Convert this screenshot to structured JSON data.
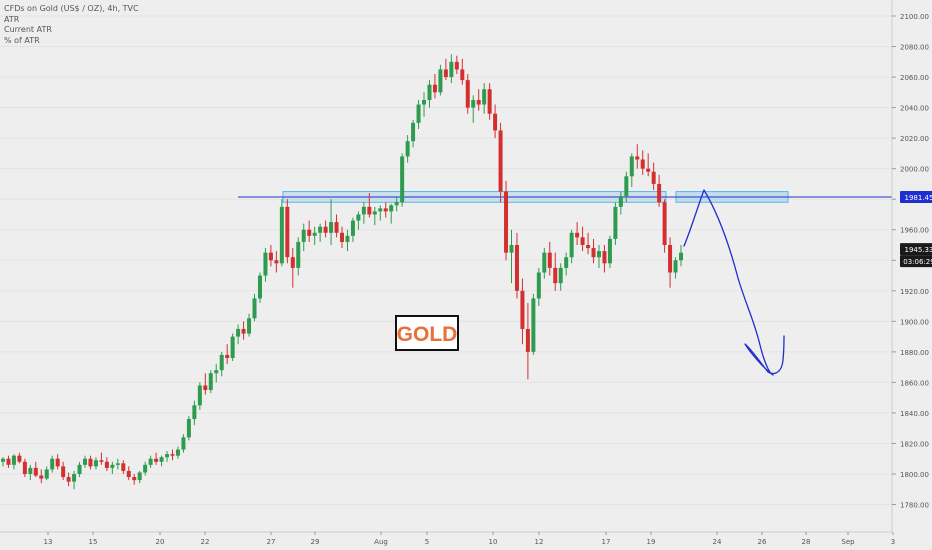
{
  "legend": {
    "title": "CFDs on Gold (US$ / OZ), 4h, TVC",
    "line1": "ATR",
    "line2": "Current ATR",
    "line3": "% of ATR"
  },
  "annotation": {
    "label": "GOLD",
    "color": "#e8703a"
  },
  "colors": {
    "up": "#2e9b4f",
    "down": "#d32f2f",
    "bg": "#eeeeee",
    "zone": "#5ab4e8",
    "drawing": "#1e2fcf"
  },
  "chart_data": {
    "type": "candlestick",
    "symbol": "CFDs on Gold (US$ / OZ)",
    "timeframe": "4h",
    "source": "TVC",
    "y_axis": {
      "ticks": [
        1780,
        1800,
        1820,
        1840,
        1860,
        1880,
        1900,
        1920,
        1940,
        1960,
        1980,
        2000,
        2020,
        2040,
        2060,
        2080,
        2100
      ],
      "range": [
        1768,
        2110
      ]
    },
    "x_axis": {
      "ticks": [
        "13",
        "15",
        "20",
        "22",
        "27",
        "29",
        "Aug",
        "5",
        "10",
        "12",
        "17",
        "19",
        "24",
        "26",
        "28",
        "Sep",
        "3"
      ]
    },
    "price_labels": {
      "level": "1981.45",
      "last": "1945.33",
      "countdown": "03:06:29"
    },
    "horizontal_line": 1981.45,
    "zone": [
      1978,
      1985
    ],
    "candles": [
      [
        1808,
        1811,
        1805,
        1810
      ],
      [
        1810,
        1812,
        1804,
        1806
      ],
      [
        1806,
        1813,
        1803,
        1812
      ],
      [
        1812,
        1814,
        1807,
        1808
      ],
      [
        1808,
        1810,
        1798,
        1800
      ],
      [
        1800,
        1806,
        1796,
        1804
      ],
      [
        1804,
        1808,
        1798,
        1799
      ],
      [
        1799,
        1803,
        1794,
        1797
      ],
      [
        1797,
        1805,
        1796,
        1803
      ],
      [
        1803,
        1812,
        1801,
        1810
      ],
      [
        1810,
        1813,
        1803,
        1805
      ],
      [
        1805,
        1808,
        1796,
        1798
      ],
      [
        1798,
        1801,
        1792,
        1795
      ],
      [
        1795,
        1802,
        1790,
        1800
      ],
      [
        1800,
        1808,
        1798,
        1806
      ],
      [
        1806,
        1812,
        1804,
        1810
      ],
      [
        1810,
        1812,
        1803,
        1805
      ],
      [
        1805,
        1811,
        1803,
        1809
      ],
      [
        1809,
        1814,
        1806,
        1808
      ],
      [
        1808,
        1811,
        1802,
        1804
      ],
      [
        1804,
        1808,
        1800,
        1806
      ],
      [
        1806,
        1810,
        1803,
        1807
      ],
      [
        1807,
        1809,
        1800,
        1802
      ],
      [
        1802,
        1805,
        1796,
        1798
      ],
      [
        1798,
        1800,
        1793,
        1796
      ],
      [
        1796,
        1802,
        1794,
        1801
      ],
      [
        1801,
        1808,
        1799,
        1806
      ],
      [
        1806,
        1812,
        1804,
        1810
      ],
      [
        1810,
        1814,
        1806,
        1808
      ],
      [
        1808,
        1812,
        1805,
        1811
      ],
      [
        1811,
        1815,
        1808,
        1813
      ],
      [
        1813,
        1816,
        1809,
        1812
      ],
      [
        1812,
        1818,
        1810,
        1816
      ],
      [
        1816,
        1826,
        1814,
        1824
      ],
      [
        1824,
        1838,
        1822,
        1836
      ],
      [
        1836,
        1848,
        1832,
        1845
      ],
      [
        1845,
        1860,
        1842,
        1858
      ],
      [
        1858,
        1866,
        1852,
        1855
      ],
      [
        1855,
        1868,
        1853,
        1866
      ],
      [
        1866,
        1872,
        1860,
        1868
      ],
      [
        1868,
        1880,
        1864,
        1878
      ],
      [
        1878,
        1885,
        1872,
        1876
      ],
      [
        1876,
        1892,
        1874,
        1890
      ],
      [
        1890,
        1898,
        1885,
        1895
      ],
      [
        1895,
        1900,
        1888,
        1892
      ],
      [
        1892,
        1905,
        1890,
        1902
      ],
      [
        1902,
        1918,
        1900,
        1915
      ],
      [
        1915,
        1932,
        1912,
        1930
      ],
      [
        1930,
        1948,
        1926,
        1945
      ],
      [
        1945,
        1950,
        1936,
        1940
      ],
      [
        1940,
        1946,
        1932,
        1938
      ],
      [
        1938,
        1980,
        1936,
        1975
      ],
      [
        1975,
        1980,
        1938,
        1942
      ],
      [
        1942,
        1948,
        1922,
        1935
      ],
      [
        1935,
        1955,
        1930,
        1952
      ],
      [
        1952,
        1964,
        1946,
        1960
      ],
      [
        1960,
        1966,
        1952,
        1956
      ],
      [
        1956,
        1962,
        1950,
        1958
      ],
      [
        1958,
        1964,
        1952,
        1962
      ],
      [
        1962,
        1966,
        1955,
        1958
      ],
      [
        1958,
        1980,
        1950,
        1965
      ],
      [
        1965,
        1970,
        1955,
        1958
      ],
      [
        1958,
        1962,
        1948,
        1952
      ],
      [
        1952,
        1960,
        1946,
        1956
      ],
      [
        1956,
        1968,
        1952,
        1966
      ],
      [
        1966,
        1972,
        1960,
        1970
      ],
      [
        1970,
        1978,
        1964,
        1975
      ],
      [
        1975,
        1984,
        1968,
        1970
      ],
      [
        1970,
        1975,
        1963,
        1972
      ],
      [
        1972,
        1976,
        1966,
        1974
      ],
      [
        1974,
        1978,
        1968,
        1972
      ],
      [
        1972,
        1977,
        1964,
        1976
      ],
      [
        1976,
        1982,
        1972,
        1978
      ],
      [
        1978,
        2010,
        1975,
        2008
      ],
      [
        2008,
        2022,
        2004,
        2018
      ],
      [
        2018,
        2032,
        2014,
        2030
      ],
      [
        2030,
        2045,
        2026,
        2042
      ],
      [
        2042,
        2050,
        2034,
        2045
      ],
      [
        2045,
        2058,
        2040,
        2055
      ],
      [
        2055,
        2062,
        2046,
        2050
      ],
      [
        2050,
        2068,
        2048,
        2065
      ],
      [
        2065,
        2072,
        2058,
        2060
      ],
      [
        2060,
        2075,
        2056,
        2070
      ],
      [
        2070,
        2074,
        2062,
        2065
      ],
      [
        2065,
        2072,
        2055,
        2058
      ],
      [
        2058,
        2062,
        2036,
        2040
      ],
      [
        2040,
        2048,
        2030,
        2045
      ],
      [
        2045,
        2052,
        2038,
        2042
      ],
      [
        2042,
        2056,
        2036,
        2052
      ],
      [
        2052,
        2056,
        2032,
        2036
      ],
      [
        2036,
        2042,
        2020,
        2025
      ],
      [
        2025,
        2030,
        1978,
        1985
      ],
      [
        1985,
        1992,
        1940,
        1945
      ],
      [
        1945,
        1960,
        1925,
        1950
      ],
      [
        1950,
        1958,
        1915,
        1920
      ],
      [
        1920,
        1928,
        1885,
        1895
      ],
      [
        1895,
        1912,
        1862,
        1880
      ],
      [
        1880,
        1918,
        1878,
        1915
      ],
      [
        1915,
        1935,
        1910,
        1932
      ],
      [
        1932,
        1948,
        1928,
        1945
      ],
      [
        1945,
        1952,
        1930,
        1935
      ],
      [
        1935,
        1945,
        1920,
        1925
      ],
      [
        1925,
        1938,
        1920,
        1935
      ],
      [
        1935,
        1945,
        1930,
        1942
      ],
      [
        1942,
        1960,
        1938,
        1958
      ],
      [
        1958,
        1965,
        1950,
        1955
      ],
      [
        1955,
        1962,
        1946,
        1950
      ],
      [
        1950,
        1958,
        1944,
        1948
      ],
      [
        1948,
        1954,
        1938,
        1942
      ],
      [
        1942,
        1950,
        1935,
        1946
      ],
      [
        1946,
        1950,
        1932,
        1938
      ],
      [
        1938,
        1956,
        1935,
        1954
      ],
      [
        1954,
        1978,
        1950,
        1975
      ],
      [
        1975,
        1985,
        1970,
        1982
      ],
      [
        1982,
        1998,
        1978,
        1995
      ],
      [
        1995,
        2010,
        1988,
        2008
      ],
      [
        2008,
        2016,
        2000,
        2006
      ],
      [
        2006,
        2012,
        1996,
        2000
      ],
      [
        2000,
        2010,
        1995,
        1998
      ],
      [
        1998,
        2004,
        1986,
        1990
      ],
      [
        1990,
        1996,
        1975,
        1978
      ],
      [
        1978,
        1980,
        1945,
        1950
      ],
      [
        1950,
        1955,
        1922,
        1932
      ],
      [
        1932,
        1942,
        1928,
        1940
      ],
      [
        1940,
        1950,
        1936,
        1945
      ]
    ]
  }
}
